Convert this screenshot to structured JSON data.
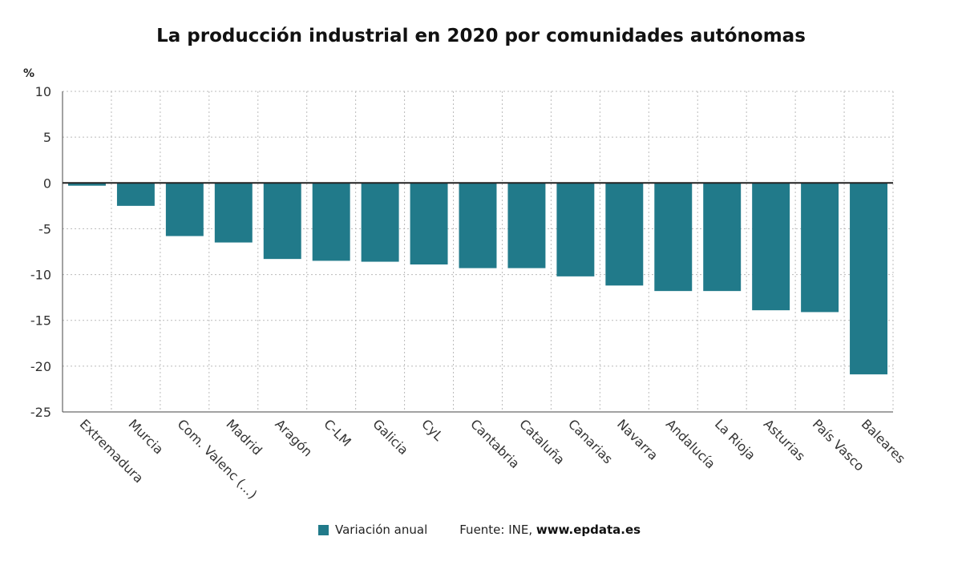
{
  "chart_data": {
    "type": "bar",
    "title": "La producción industrial en 2020 por comunidades autónomas",
    "ylabel": "%",
    "xlabel": "",
    "ylim": [
      -25,
      10
    ],
    "yticks": [
      10,
      5,
      0,
      -5,
      -10,
      -15,
      -20,
      -25
    ],
    "grid": true,
    "legend_position": "bottom",
    "categories": [
      "Extremadura",
      "Murcia",
      "Com. Valenc (...)",
      "Madrid",
      "Aragón",
      "C-LM",
      "Galicia",
      "CyL",
      "Cantabria",
      "Cataluña",
      "Canarias",
      "Navarra",
      "Andalucía",
      "La Rioja",
      "Asturias",
      "País Vasco",
      "Baleares"
    ],
    "series": [
      {
        "name": "Variación anual",
        "color": "#217a8a",
        "values": [
          -0.3,
          -2.5,
          -5.8,
          -6.5,
          -8.3,
          -8.5,
          -8.6,
          -8.9,
          -9.3,
          -9.3,
          -10.2,
          -11.2,
          -11.8,
          -11.8,
          -13.9,
          -14.1,
          -20.9
        ]
      }
    ]
  },
  "source": {
    "prefix": "Fuente: INE, ",
    "site": "www.epdata.es"
  }
}
